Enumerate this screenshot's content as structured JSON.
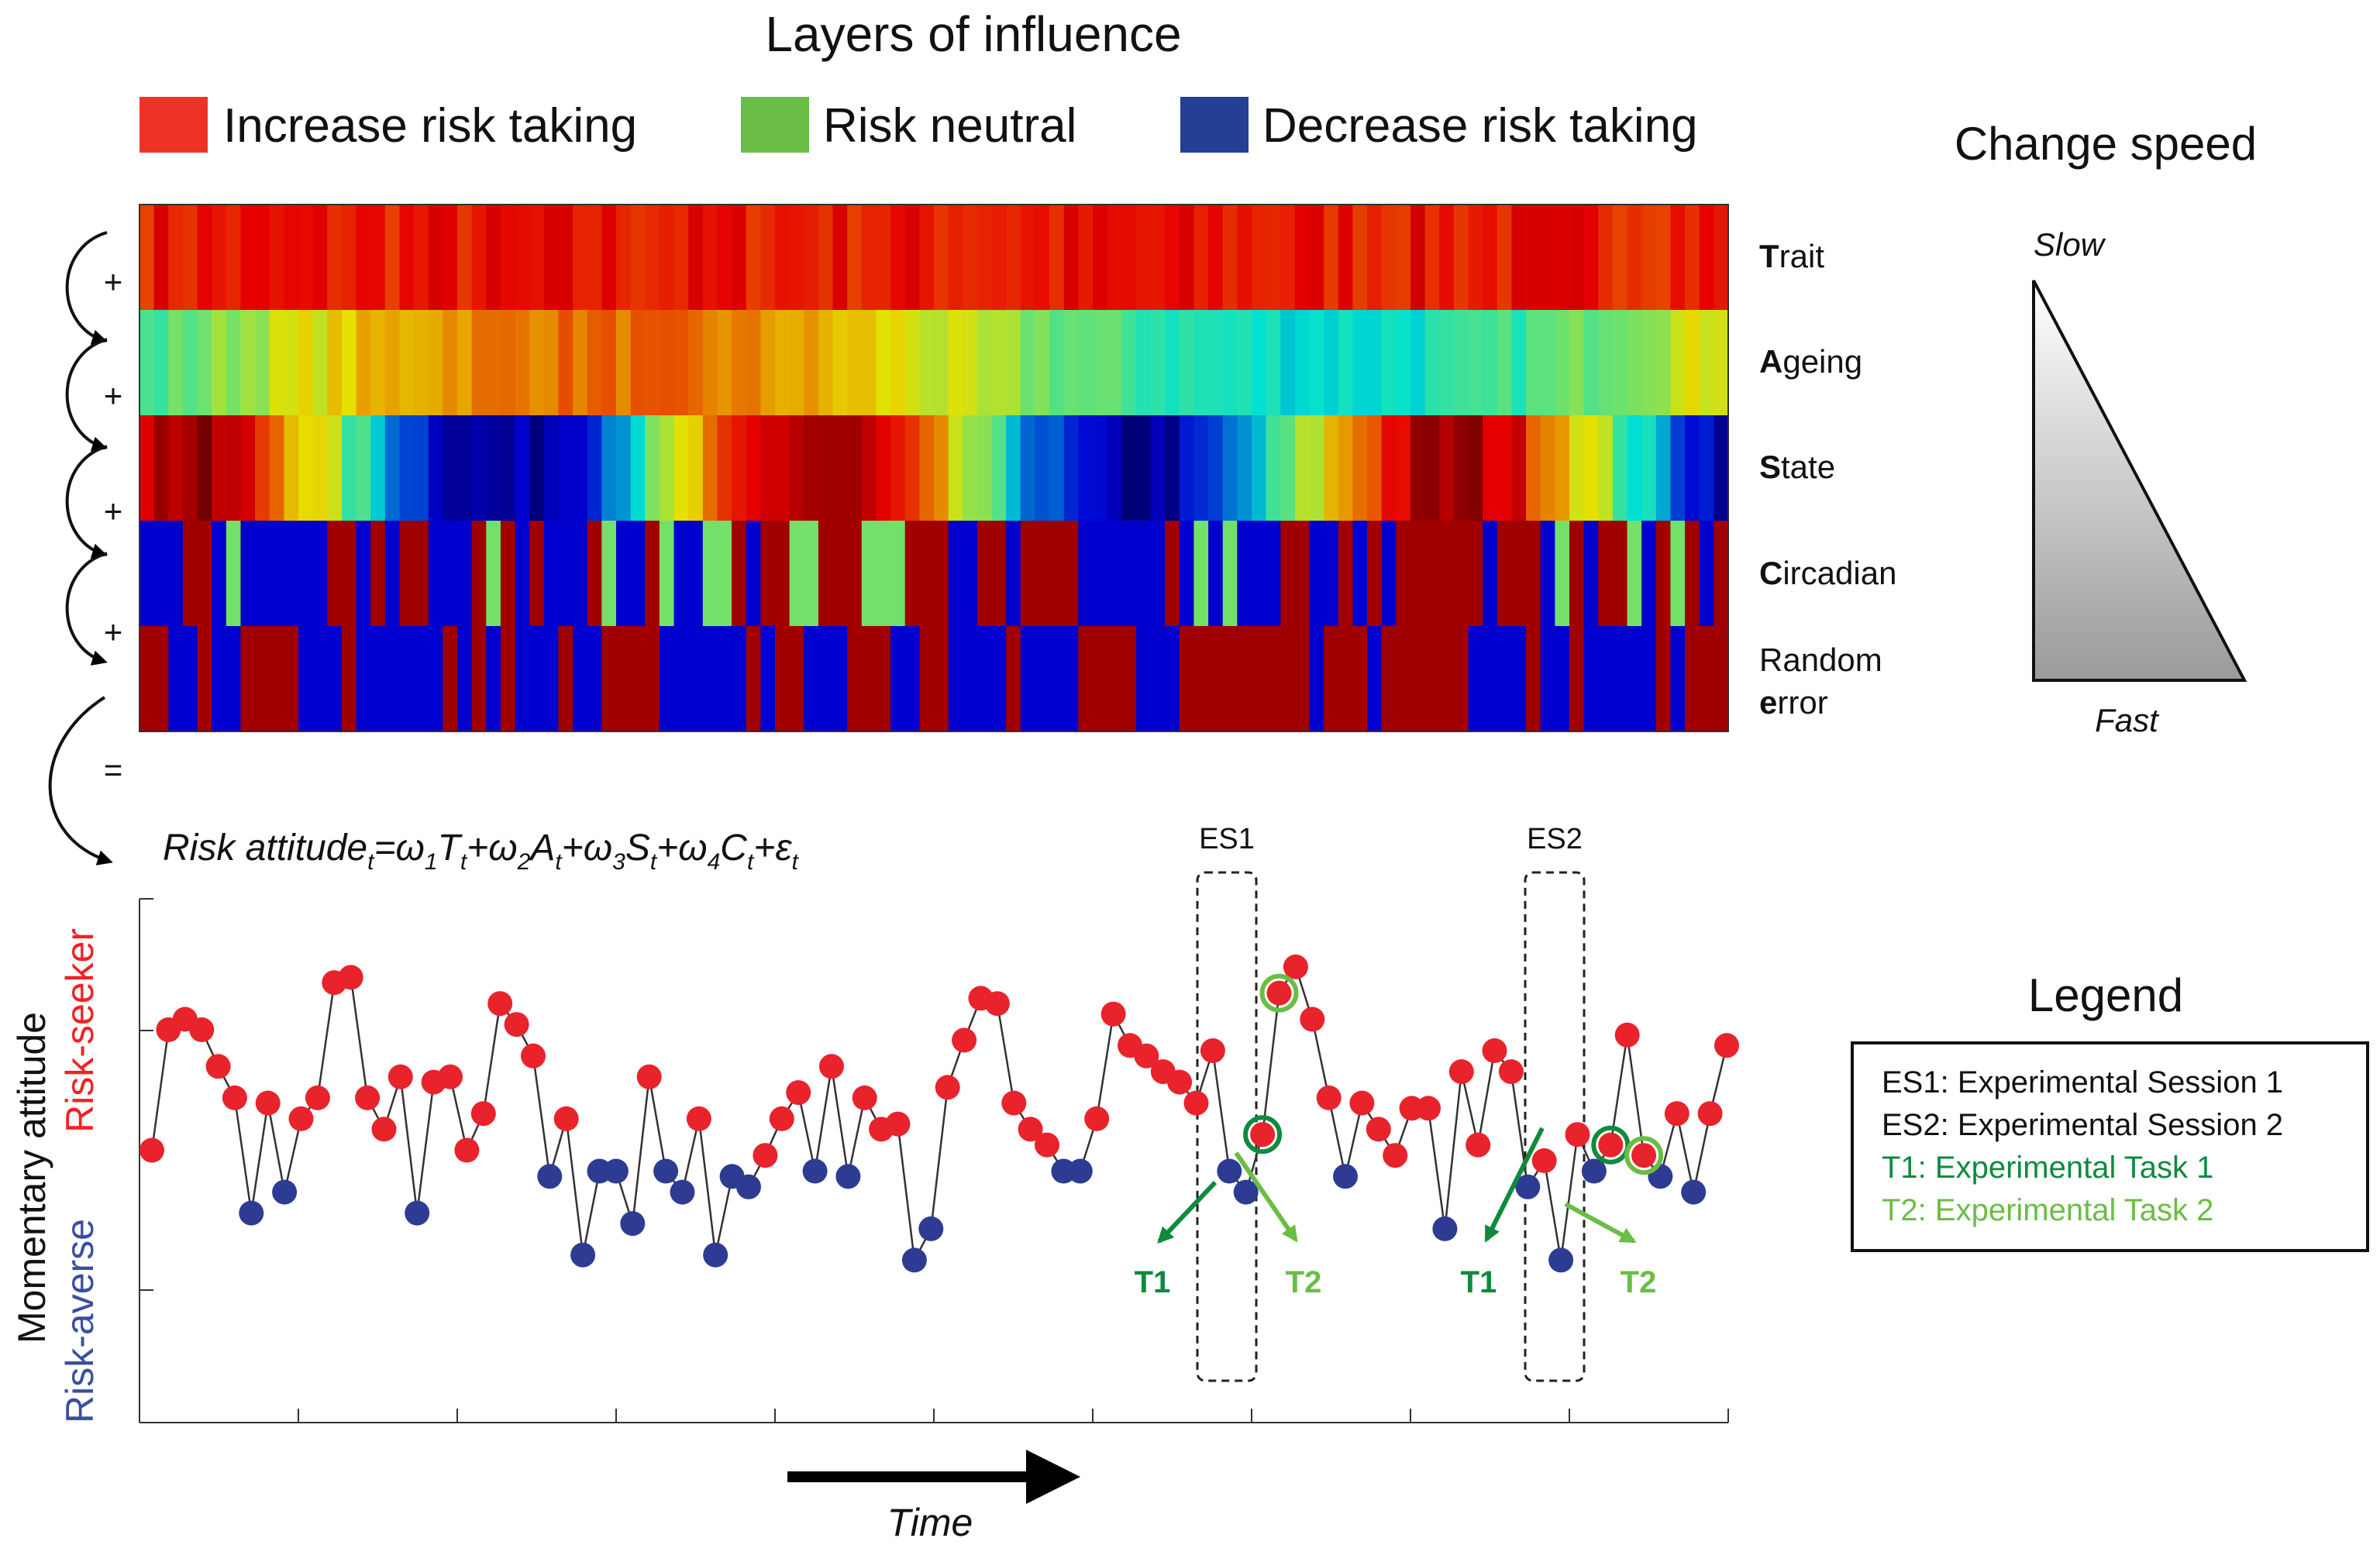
{
  "title": "Layers of influence",
  "legend_top": [
    {
      "label": "Increase risk taking",
      "color": "#ee3326"
    },
    {
      "label": "Risk neutral",
      "color": "#6abd45"
    },
    {
      "label": "Decrease risk taking",
      "color": "#253f95"
    }
  ],
  "layers": [
    {
      "initial": "T",
      "rest": "rait"
    },
    {
      "initial": "A",
      "rest": "geing"
    },
    {
      "initial": "S",
      "rest": "tate"
    },
    {
      "initial": "C",
      "rest": "ircadian"
    },
    {
      "rest": "Random",
      "initial": "e",
      "rest2": "rror"
    }
  ],
  "plus_sign": "+",
  "equals_sign": "=",
  "change_speed": {
    "title": "Change speed",
    "slow": "Slow",
    "fast": "Fast"
  },
  "equation": {
    "lhs": "Risk attitude",
    "sub_t": "t",
    "eq": "=",
    "plus": "+",
    "w1": "ω",
    "w1_sub": "1",
    "T": "T",
    "w2": "ω",
    "w2_sub": "2",
    "A": "A",
    "w3": "ω",
    "w3_sub": "3",
    "S": "S",
    "w4": "ω",
    "w4_sub": "4",
    "C": "C",
    "eps": "ε"
  },
  "y_axis": {
    "main": "Momentary attitude",
    "upper": "Risk-seeker",
    "lower": "Risk-averse",
    "upper_color": "#ee2326",
    "lower_color": "#3a4fa0"
  },
  "x_axis": {
    "label": "Time"
  },
  "sessions": [
    {
      "label": "ES1"
    },
    {
      "label": "ES2"
    }
  ],
  "tasks": [
    {
      "label": "T1",
      "color": "#0f8a3e"
    },
    {
      "label": "T2",
      "color": "#6abd45"
    },
    {
      "label": "T1",
      "color": "#0f8a3e"
    },
    {
      "label": "T2",
      "color": "#6abd45"
    }
  ],
  "legend": {
    "title": "Legend",
    "items": [
      {
        "text": "ES1: Experimental Session 1",
        "color": "#111111"
      },
      {
        "text": "ES2: Experimental Session 2",
        "color": "#111111"
      },
      {
        "text": "T1: Experimental Task 1",
        "color": "#0f8a3e"
      },
      {
        "text": "T2: Experimental Task 2",
        "color": "#6abd45"
      }
    ]
  },
  "chart_data": {
    "type": "scatter",
    "title": "",
    "xlabel": "Time",
    "ylabel": "Momentary attitude",
    "ylim": [
      0,
      100
    ],
    "threshold": 50,
    "colors": {
      "above": "#e8232b",
      "below": "#2d3c92"
    },
    "series": [
      {
        "name": "Risk attitude",
        "values": [
          52,
          75,
          77,
          75,
          68,
          62,
          40,
          61,
          44,
          58,
          62,
          84,
          85,
          62,
          56,
          66,
          40,
          65,
          66,
          52,
          59,
          80,
          76,
          70,
          47,
          58,
          32,
          48,
          48,
          38,
          66,
          48,
          44,
          58,
          32,
          47,
          45,
          51,
          58,
          63,
          48,
          68,
          47,
          62,
          56,
          57,
          31,
          37,
          64,
          73,
          81,
          80,
          61,
          56,
          53,
          48,
          48,
          58,
          78,
          72,
          70,
          67,
          65,
          61,
          71,
          48,
          44,
          55,
          82,
          87,
          77,
          62,
          47,
          61,
          56,
          51,
          60,
          60,
          37,
          67,
          53,
          71,
          67,
          45,
          50,
          31,
          55,
          48,
          53,
          74,
          51,
          47,
          59,
          44,
          59,
          72
        ]
      }
    ],
    "highlight_indices": [
      67,
      68,
      88,
      90
    ]
  }
}
